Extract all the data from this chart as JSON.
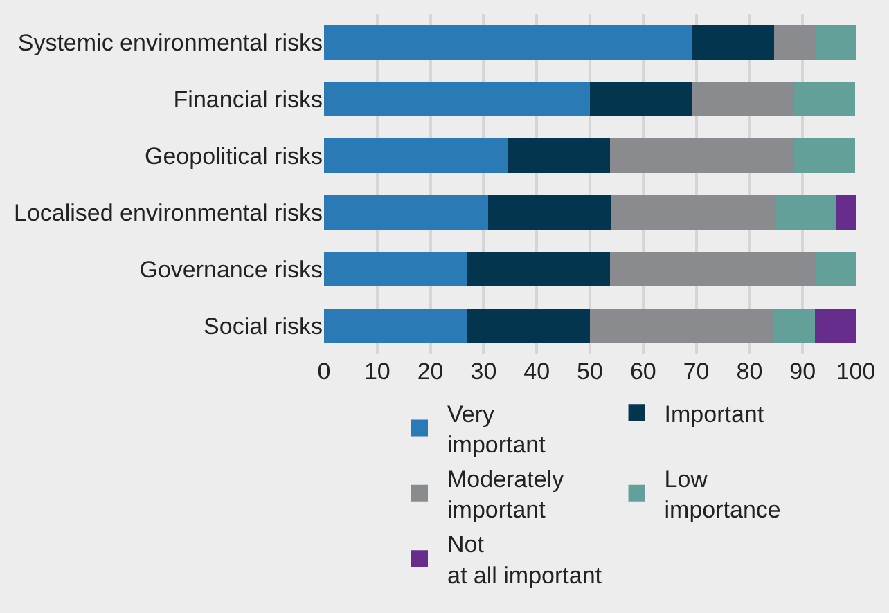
{
  "chart_data": {
    "type": "bar",
    "orientation": "horizontal",
    "stacked": true,
    "categories": [
      "Systemic environmental risks",
      "Financial risks",
      "Geopolitical risks",
      "Localised environmental risks",
      "Governance risks",
      "Social risks"
    ],
    "series": [
      {
        "name": "Very important",
        "color": "#2a7ab5",
        "values": [
          69.2,
          50.0,
          34.6,
          30.8,
          26.9,
          26.9
        ]
      },
      {
        "name": "Important",
        "color": "#03354f",
        "values": [
          15.4,
          19.2,
          19.2,
          23.1,
          26.9,
          23.1
        ]
      },
      {
        "name": "Moderately important",
        "color": "#898b8f",
        "values": [
          7.7,
          19.2,
          34.6,
          30.8,
          38.5,
          34.6
        ]
      },
      {
        "name": "Low importance",
        "color": "#64a09a",
        "values": [
          7.7,
          11.5,
          11.5,
          11.5,
          7.7,
          7.7
        ]
      },
      {
        "name": "Not at all important",
        "color": "#662d8c",
        "values": [
          0,
          0,
          0,
          3.8,
          0,
          7.7
        ]
      }
    ],
    "xlim": [
      0,
      100
    ],
    "xticks": [
      0,
      10,
      20,
      30,
      40,
      50,
      60,
      70,
      80,
      90,
      100
    ],
    "grid": "x",
    "legend": "bottom"
  }
}
